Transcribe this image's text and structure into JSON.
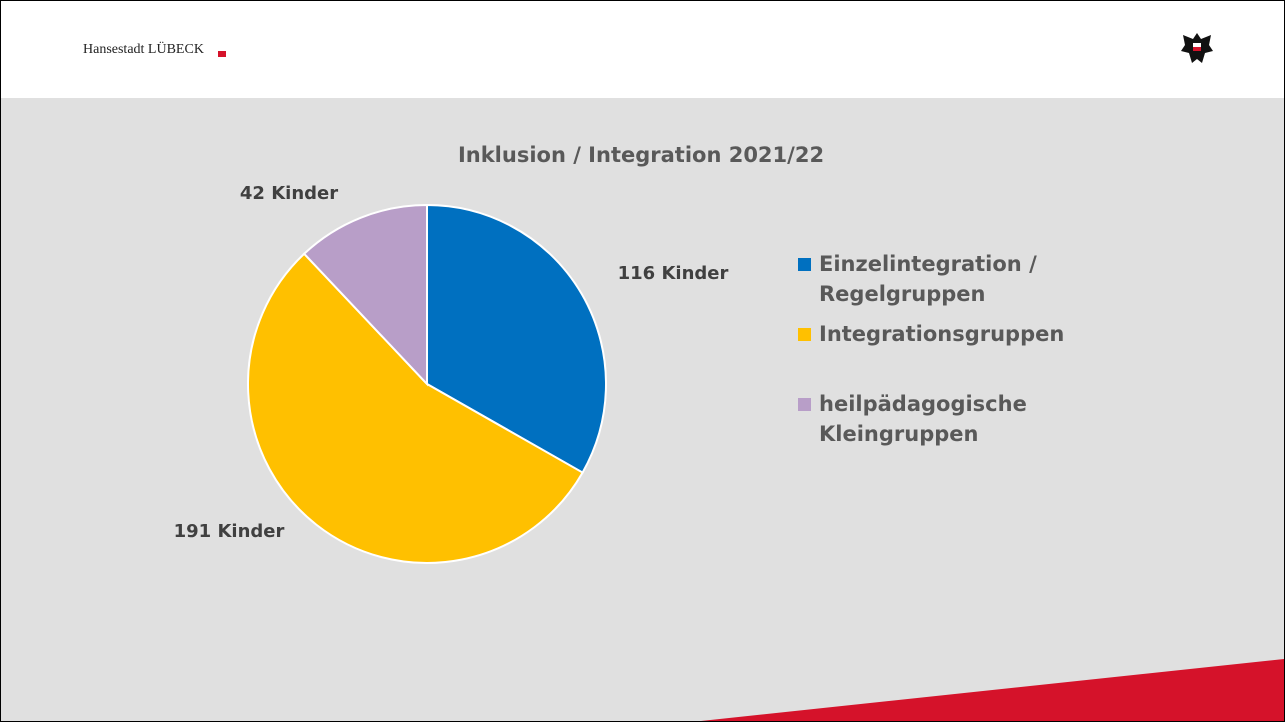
{
  "header": {
    "brand": "Hansestadt LÜBECK"
  },
  "chart_data": {
    "type": "pie",
    "title": "Inklusion / Integration 2021/22",
    "categories": [
      "Einzelintegration / Regelgruppen",
      "Integrationsgruppen",
      "heilpädagogische Kleingruppen"
    ],
    "values": [
      116,
      191,
      42
    ],
    "value_labels": [
      "116 Kinder",
      "191 Kinder",
      "42 Kinder"
    ],
    "colors": [
      "#0070c0",
      "#ffc000",
      "#b89ec8"
    ]
  }
}
